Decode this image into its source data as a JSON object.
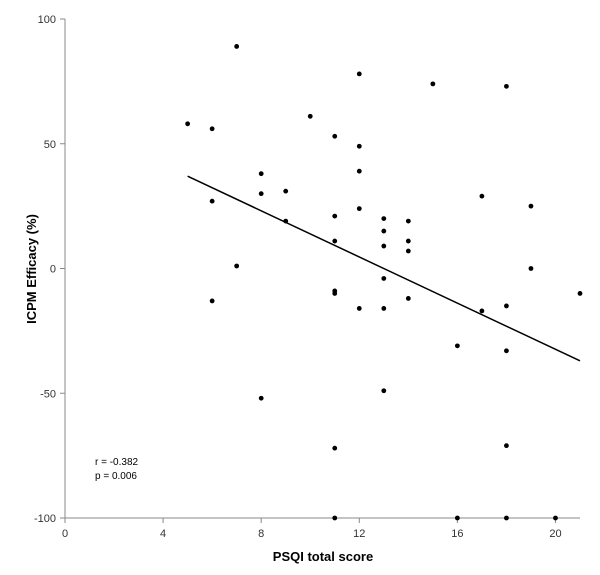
{
  "chart_data": {
    "type": "scatter",
    "xlabel": "PSQI total score",
    "ylabel": "ICPM Efficacy (%)",
    "xlim": [
      0,
      21
    ],
    "ylim": [
      -100,
      100
    ],
    "x_ticks": [
      0,
      4,
      8,
      12,
      16,
      20
    ],
    "y_ticks": [
      -100,
      -50,
      0,
      50,
      100
    ],
    "grid": false,
    "points": [
      {
        "x": 5,
        "y": 58
      },
      {
        "x": 6,
        "y": 56
      },
      {
        "x": 6,
        "y": 27
      },
      {
        "x": 6,
        "y": -13
      },
      {
        "x": 7,
        "y": 89
      },
      {
        "x": 7,
        "y": 1
      },
      {
        "x": 8,
        "y": 38
      },
      {
        "x": 8,
        "y": 30
      },
      {
        "x": 8,
        "y": -52
      },
      {
        "x": 9,
        "y": 31
      },
      {
        "x": 9,
        "y": 19
      },
      {
        "x": 10,
        "y": 61
      },
      {
        "x": 11,
        "y": 53
      },
      {
        "x": 11,
        "y": 21
      },
      {
        "x": 11,
        "y": 11
      },
      {
        "x": 11,
        "y": -9
      },
      {
        "x": 11,
        "y": -10
      },
      {
        "x": 11,
        "y": -72
      },
      {
        "x": 11,
        "y": -100
      },
      {
        "x": 12,
        "y": 78
      },
      {
        "x": 12,
        "y": 49
      },
      {
        "x": 12,
        "y": 39
      },
      {
        "x": 12,
        "y": 24
      },
      {
        "x": 12,
        "y": -16
      },
      {
        "x": 13,
        "y": 20
      },
      {
        "x": 13,
        "y": 15
      },
      {
        "x": 13,
        "y": 9
      },
      {
        "x": 13,
        "y": -4
      },
      {
        "x": 13,
        "y": -16
      },
      {
        "x": 13,
        "y": -49
      },
      {
        "x": 14,
        "y": 19
      },
      {
        "x": 14,
        "y": 11
      },
      {
        "x": 14,
        "y": 7
      },
      {
        "x": 14,
        "y": -12
      },
      {
        "x": 15,
        "y": 74
      },
      {
        "x": 16,
        "y": -31
      },
      {
        "x": 16,
        "y": -100
      },
      {
        "x": 17,
        "y": 29
      },
      {
        "x": 17,
        "y": -17
      },
      {
        "x": 18,
        "y": 73
      },
      {
        "x": 18,
        "y": -15
      },
      {
        "x": 18,
        "y": -33
      },
      {
        "x": 18,
        "y": -71
      },
      {
        "x": 18,
        "y": -100
      },
      {
        "x": 19,
        "y": 25
      },
      {
        "x": 19,
        "y": 0
      },
      {
        "x": 20,
        "y": -100
      },
      {
        "x": 21,
        "y": -10
      }
    ],
    "trendline": {
      "x": [
        5,
        21
      ],
      "y": [
        37,
        -37
      ]
    },
    "annotations": [
      "r = -0.382",
      "p = 0.006"
    ]
  }
}
